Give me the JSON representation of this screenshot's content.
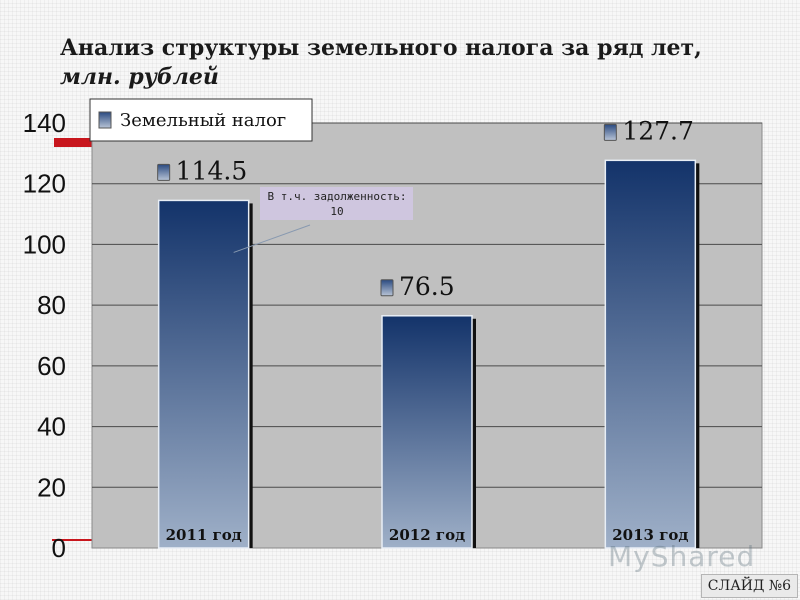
{
  "title": {
    "main": "Анализ структуры земельного налога за ряд лет,",
    "unit": "млн. рублей"
  },
  "slide_label": "СЛАЙД №6",
  "watermark": "MyShared",
  "colors": {
    "bar_top": "#13336a",
    "bar_bottom": "#9fb0c8",
    "plot_bg": "#c0c0c0",
    "accent": "#c8161d",
    "callout_bg": "#cfc6df"
  },
  "chart_data": {
    "type": "bar",
    "categories": [
      "2011 год",
      "2012 год",
      "2013 год"
    ],
    "series": [
      {
        "name": "Земельный налог",
        "values": [
          114.5,
          76.5,
          127.7
        ]
      }
    ],
    "value_labels": [
      "114.5",
      "76.5",
      "127.7"
    ],
    "yticks": [
      0,
      20,
      40,
      60,
      80,
      100,
      120,
      140
    ],
    "ylim": [
      0,
      140
    ],
    "grid": true,
    "legend": "top-left",
    "annotation": {
      "text_line1": "В т.ч. задолженность:",
      "text_line2": "10",
      "target_category": "2011 год"
    }
  }
}
